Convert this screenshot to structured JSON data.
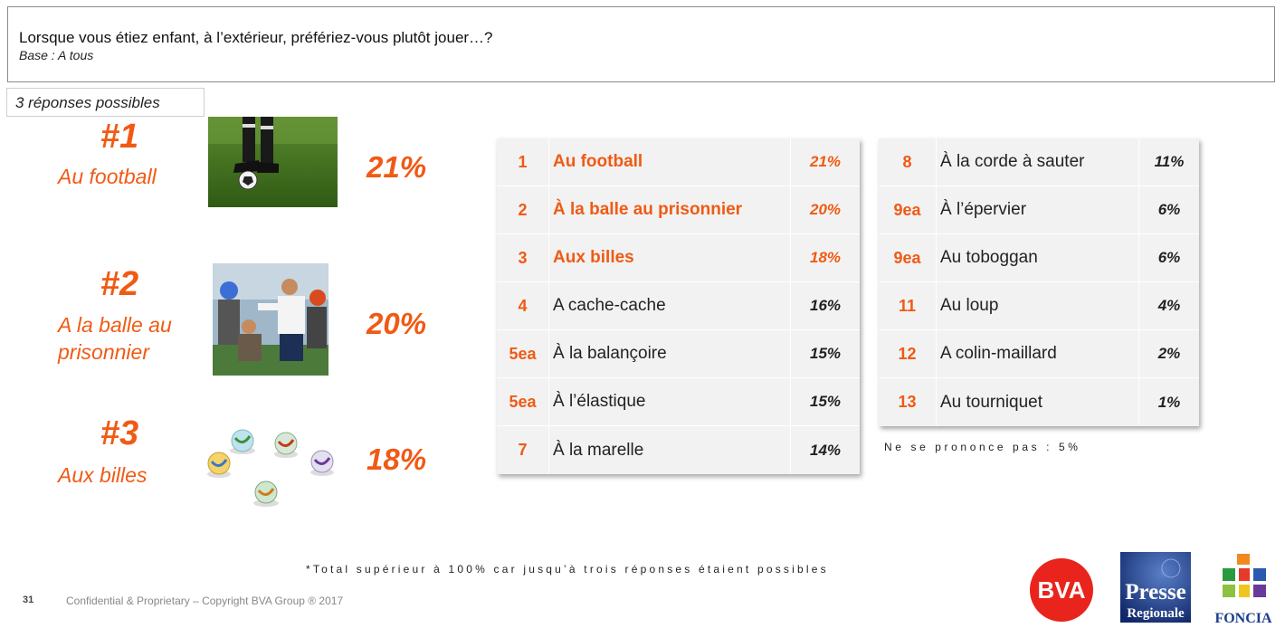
{
  "question": {
    "text": "Lorsque vous étiez enfant, à l’extérieur, préfériez-vous plutôt jouer…?",
    "base": "Base : A tous"
  },
  "responses_tag": "3 réponses possibles",
  "podium": [
    {
      "rank": "#1",
      "label_lines": [
        "Au football"
      ],
      "pct": "21%",
      "photo_icon": "football-photo"
    },
    {
      "rank": "#2",
      "label_lines": [
        "A la balle au",
        "prisonnier"
      ],
      "pct": "20%",
      "photo_icon": "dodgeball-photo"
    },
    {
      "rank": "#3",
      "label_lines": [
        "Aux billes"
      ],
      "pct": "18%",
      "photo_icon": "marbles-photo"
    }
  ],
  "table_left": [
    {
      "rank": "1",
      "label": "Au football",
      "pct": "21%",
      "highlight": true
    },
    {
      "rank": "2",
      "label": "À la balle au prisonnier",
      "pct": "20%",
      "highlight": true
    },
    {
      "rank": "3",
      "label": "Aux billes",
      "pct": "18%",
      "highlight": true
    },
    {
      "rank": "4",
      "label": "A cache-cache",
      "pct": "16%",
      "highlight": false
    },
    {
      "rank": "5ea",
      "label": "À la balançoire",
      "pct": "15%",
      "highlight": false
    },
    {
      "rank": "5ea",
      "label": "À l’élastique",
      "pct": "15%",
      "highlight": false
    },
    {
      "rank": "7",
      "label": "À la marelle",
      "pct": "14%",
      "highlight": false
    }
  ],
  "table_right": [
    {
      "rank": "8",
      "label": "À la corde à sauter",
      "pct": "11%",
      "highlight": false
    },
    {
      "rank": "9ea",
      "label": "À l’épervier",
      "pct": "6%",
      "highlight": false
    },
    {
      "rank": "9ea",
      "label": "Au toboggan",
      "pct": "6%",
      "highlight": false
    },
    {
      "rank": "11",
      "label": "Au loup",
      "pct": "4%",
      "highlight": false
    },
    {
      "rank": "12",
      "label": "A colin-maillard",
      "pct": "2%",
      "highlight": false
    },
    {
      "rank": "13",
      "label": "Au tourniquet",
      "pct": "1%",
      "highlight": false
    }
  ],
  "no_answer": "Ne se prononce pas : 5%",
  "footnote": "*Total supérieur à 100% car jusqu’à trois réponses étaient possibles",
  "footer": {
    "page_number": "31",
    "copyright": "Confidential & Proprietary – Copyright BVA Group ® 2017"
  },
  "logos": {
    "bva": "BVA",
    "presse": [
      "Presse",
      "Regionale"
    ],
    "foncia": "FONCIA"
  },
  "colors": {
    "accent": "#f05a14",
    "table_bg": "#f2f2f2",
    "bva_red": "#e8241d",
    "presse_blue": "#1c3c8c"
  }
}
